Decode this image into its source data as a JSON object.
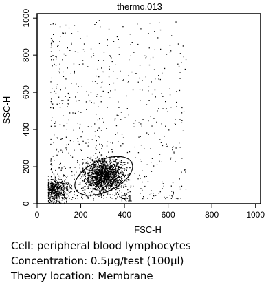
{
  "chart_data": {
    "type": "scatter",
    "title": "thermo.013",
    "xlabel": "FSC-H",
    "ylabel": "SSC-H",
    "xlim": [
      0,
      1023
    ],
    "ylim": [
      0,
      1023
    ],
    "xticks": [
      0,
      200,
      400,
      600,
      800,
      1000
    ],
    "yticks": [
      0,
      200,
      400,
      600,
      800,
      1000
    ],
    "grid": false,
    "point_color": "#000000",
    "populations": [
      {
        "description": "dense lymphocyte cluster",
        "center": [
          305,
          155
        ],
        "spread": [
          45,
          38
        ],
        "count": 1500
      },
      {
        "description": "low debris cluster",
        "center": [
          85,
          75
        ],
        "spread": [
          28,
          28
        ],
        "count": 450
      },
      {
        "description": "scattered events",
        "x_range": [
          60,
          680
        ],
        "y_range": [
          30,
          990
        ],
        "count": 700
      }
    ],
    "gates": [
      {
        "name": "R1",
        "type": "ellipse",
        "center": [
          305,
          150
        ],
        "semi_axes": [
          142,
          85
        ],
        "rotation_deg": 25
      }
    ]
  },
  "caption": {
    "line1": "Cell: peripheral blood lymphocytes",
    "line2": "Concentration: 0.5μg/test (100μl)",
    "line3": "Theory location: Membrane"
  }
}
